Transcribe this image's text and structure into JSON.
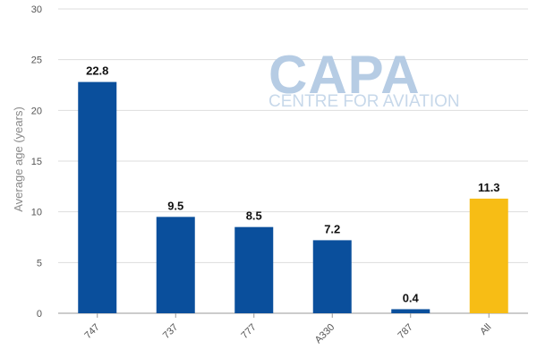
{
  "watermark": {
    "title": "CAPA",
    "subtitle": "CENTRE FOR AVIATION"
  },
  "chart_data": {
    "type": "bar",
    "title": "",
    "xlabel": "",
    "ylabel": "Average age (years)",
    "categories": [
      "747",
      "737",
      "777",
      "A330",
      "787",
      "All"
    ],
    "values": [
      22.8,
      9.5,
      8.5,
      7.2,
      0.4,
      11.3
    ],
    "data_labels": [
      "22.8",
      "9.5",
      "8.5",
      "7.2",
      "0.4",
      "11.3"
    ],
    "ylim": [
      0,
      30
    ],
    "yticks": [
      0,
      5,
      10,
      15,
      20,
      25,
      30
    ],
    "ytick_labels": [
      "0",
      "5",
      "10",
      "15",
      "20",
      "25",
      "30"
    ],
    "grid": true,
    "legend": "none",
    "colors": {
      "bar": "#0a4f9c",
      "highlight": "#f7bd15",
      "highlight_category": "All",
      "grid": "#dddddd",
      "baseline": "#999999"
    }
  }
}
